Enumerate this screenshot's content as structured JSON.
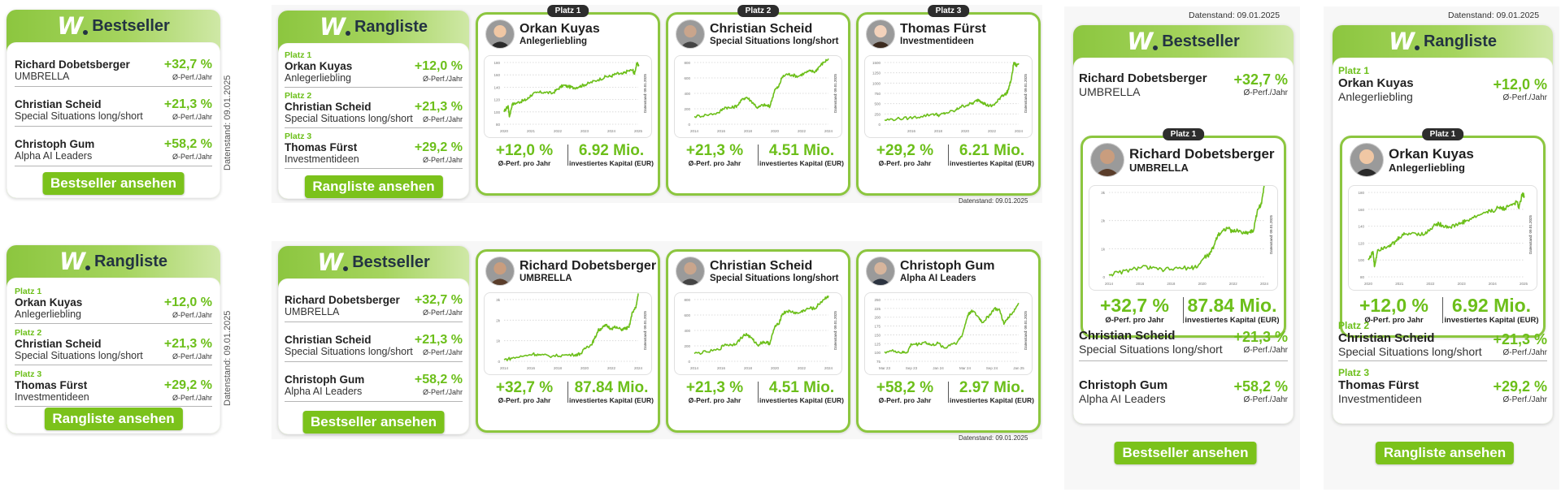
{
  "stamp": "Datenstand: 09.01.2025",
  "perf_sub": "Ø-Perf./Jahr",
  "kpi_perf_label": "Ø-Perf. pro Jahr",
  "kpi_capital_label": "investiertes Kapital (EUR)",
  "logo_mark": "W",
  "titles": {
    "bestseller": "Bestseller",
    "rangliste": "Rangliste"
  },
  "buttons": {
    "bestseller": "Bestseller ansehen",
    "rangliste": "Rangliste ansehen"
  },
  "rank_labels": [
    "Platz 1",
    "Platz 2",
    "Platz 3"
  ],
  "traders": {
    "dobetsberger": {
      "name": "Richard Dobetsberger",
      "fund": "UMBRELLA",
      "perf": "+32,7 %",
      "capital": "87.84 Mio."
    },
    "scheid": {
      "name": "Christian Scheid",
      "fund": "Special Situations long/short",
      "perf": "+21,3 %",
      "capital": "4.51 Mio."
    },
    "gum": {
      "name": "Christoph Gum",
      "fund": "Alpha AI Leaders",
      "perf": "+58,2 %",
      "capital": "2.97 Mio."
    },
    "kuyas": {
      "name": "Orkan Kuyas",
      "fund": "Anlegerliebling",
      "perf": "+12,0 %",
      "capital": "6.92 Mio."
    },
    "fuerst": {
      "name": "Thomas Fürst",
      "fund": "Investmentideen",
      "perf": "+29,2 %",
      "capital": "6.21 Mio."
    }
  },
  "colors": {
    "accent": "#6cbf1a",
    "header_green": "#8cc63f",
    "button_green": "#7bc21b",
    "title_dark": "#233342",
    "badge_dark": "#2d2d2d"
  },
  "chart_data": [
    {
      "id": "kuyas",
      "type": "line",
      "title": "Orkan Kuyas – Anlegerliebling",
      "x_ticks": [
        "2020",
        "2021",
        "2022",
        "2023",
        "2024",
        "2025"
      ],
      "y_ticks": [
        "80",
        "100",
        "120",
        "140",
        "160",
        "180"
      ],
      "ylim": [
        80,
        180
      ],
      "xlim": [
        2020,
        2025
      ],
      "side_label": "Datenstand: 09.01.2025",
      "points": [
        [
          2020.0,
          100
        ],
        [
          2020.15,
          110
        ],
        [
          2020.2,
          92
        ],
        [
          2020.3,
          112
        ],
        [
          2020.5,
          115
        ],
        [
          2020.7,
          118
        ],
        [
          2020.85,
          120
        ],
        [
          2021.0,
          127
        ],
        [
          2021.2,
          131
        ],
        [
          2021.5,
          132
        ],
        [
          2021.8,
          130
        ],
        [
          2022.0,
          137
        ],
        [
          2022.2,
          143
        ],
        [
          2022.4,
          141
        ],
        [
          2022.6,
          139
        ],
        [
          2022.8,
          141
        ],
        [
          2023.0,
          144
        ],
        [
          2023.2,
          147
        ],
        [
          2023.5,
          152
        ],
        [
          2023.8,
          157
        ],
        [
          2024.0,
          158
        ],
        [
          2024.2,
          162
        ],
        [
          2024.4,
          161
        ],
        [
          2024.6,
          166
        ],
        [
          2024.8,
          168
        ],
        [
          2024.85,
          161
        ],
        [
          2024.95,
          178
        ],
        [
          2025.02,
          176
        ]
      ]
    },
    {
      "id": "scheid",
      "type": "line",
      "title": "Christian Scheid – Special Situations long/short",
      "x_ticks": [
        "2014",
        "2016",
        "2018",
        "2020",
        "2022",
        "2024"
      ],
      "y_ticks": [
        "0",
        "200",
        "400",
        "600",
        "800"
      ],
      "ylim": [
        0,
        800
      ],
      "xlim": [
        2014,
        2025
      ],
      "side_label": "Datenstand: 09.01.2025",
      "points": [
        [
          2014.0,
          100
        ],
        [
          2015.0,
          120
        ],
        [
          2016.0,
          150
        ],
        [
          2016.5,
          220
        ],
        [
          2017.0,
          210
        ],
        [
          2017.5,
          240
        ],
        [
          2018.0,
          330
        ],
        [
          2018.3,
          350
        ],
        [
          2018.8,
          280
        ],
        [
          2019.2,
          210
        ],
        [
          2019.6,
          250
        ],
        [
          2020.0,
          240
        ],
        [
          2020.2,
          230
        ],
        [
          2020.6,
          450
        ],
        [
          2020.9,
          480
        ],
        [
          2021.2,
          610
        ],
        [
          2021.6,
          650
        ],
        [
          2022.0,
          640
        ],
        [
          2022.5,
          620
        ],
        [
          2023.0,
          660
        ],
        [
          2023.5,
          690
        ],
        [
          2023.9,
          680
        ],
        [
          2024.2,
          740
        ],
        [
          2024.6,
          800
        ],
        [
          2025.0,
          850
        ]
      ]
    },
    {
      "id": "fuerst",
      "type": "line",
      "title": "Thomas Fürst – Investmentideen",
      "x_ticks": [
        "2016",
        "2018",
        "2020",
        "2022",
        "2024"
      ],
      "y_ticks": [
        "0",
        "250",
        "500",
        "750",
        "1000",
        "1250",
        "1500"
      ],
      "ylim": [
        0,
        1500
      ],
      "xlim": [
        2014,
        2025
      ],
      "side_label": "Datenstand: 09.01.2025",
      "points": [
        [
          2014.0,
          100
        ],
        [
          2015.0,
          130
        ],
        [
          2016.0,
          150
        ],
        [
          2017.0,
          190
        ],
        [
          2018.0,
          250
        ],
        [
          2018.5,
          220
        ],
        [
          2019.0,
          270
        ],
        [
          2019.8,
          330
        ],
        [
          2020.2,
          420
        ],
        [
          2020.8,
          470
        ],
        [
          2021.3,
          520
        ],
        [
          2021.7,
          600
        ],
        [
          2022.0,
          540
        ],
        [
          2022.4,
          460
        ],
        [
          2022.8,
          440
        ],
        [
          2023.2,
          530
        ],
        [
          2023.6,
          700
        ],
        [
          2023.9,
          720
        ],
        [
          2024.1,
          800
        ],
        [
          2024.4,
          1100
        ],
        [
          2024.6,
          1500
        ],
        [
          2024.8,
          1420
        ],
        [
          2025.0,
          1480
        ]
      ]
    },
    {
      "id": "dobetsberger",
      "type": "line",
      "title": "Richard Dobetsberger – UMBRELLA",
      "x_ticks": [
        "2014",
        "2016",
        "2018",
        "2020",
        "2022",
        "2024"
      ],
      "y_ticks": [
        "0",
        "1k",
        "2k",
        "3k"
      ],
      "ylim": [
        0,
        3000
      ],
      "xlim": [
        2013.3,
        2025
      ],
      "side_label": "Datenstand: 09.01.2025",
      "points": [
        [
          2013.3,
          80
        ],
        [
          2014.0,
          150
        ],
        [
          2015.0,
          250
        ],
        [
          2015.8,
          360
        ],
        [
          2016.5,
          300
        ],
        [
          2017.5,
          250
        ],
        [
          2018.5,
          300
        ],
        [
          2019.5,
          320
        ],
        [
          2020.0,
          380
        ],
        [
          2020.5,
          700
        ],
        [
          2020.9,
          800
        ],
        [
          2021.2,
          1100
        ],
        [
          2021.5,
          1500
        ],
        [
          2021.8,
          1600
        ],
        [
          2022.2,
          1750
        ],
        [
          2022.6,
          1600
        ],
        [
          2023.0,
          1650
        ],
        [
          2023.5,
          1550
        ],
        [
          2023.9,
          1600
        ],
        [
          2024.2,
          1650
        ],
        [
          2024.5,
          2400
        ],
        [
          2024.8,
          2600
        ],
        [
          2025.0,
          3300
        ]
      ]
    },
    {
      "id": "gum",
      "type": "line",
      "title": "Christoph Gum – Alpha AI Leaders",
      "x_ticks": [
        "Mar 23",
        "Sep 23",
        "Jan 24",
        "Mar 24",
        "Sep 24",
        "Jan 25"
      ],
      "y_ticks": [
        "75",
        "100",
        "125",
        "150",
        "175",
        "200",
        "225",
        "250"
      ],
      "ylim": [
        75,
        250
      ],
      "xlim": [
        0,
        1
      ],
      "side_label": "Datenstand: 09.01.2025",
      "points": [
        [
          0.0,
          102
        ],
        [
          0.08,
          104
        ],
        [
          0.13,
          99
        ],
        [
          0.17,
          101
        ],
        [
          0.2,
          124
        ],
        [
          0.25,
          123
        ],
        [
          0.3,
          130
        ],
        [
          0.35,
          120
        ],
        [
          0.4,
          126
        ],
        [
          0.45,
          112
        ],
        [
          0.5,
          125
        ],
        [
          0.54,
          128
        ],
        [
          0.58,
          150
        ],
        [
          0.62,
          205
        ],
        [
          0.65,
          220
        ],
        [
          0.7,
          200
        ],
        [
          0.73,
          185
        ],
        [
          0.78,
          205
        ],
        [
          0.82,
          225
        ],
        [
          0.86,
          218
        ],
        [
          0.89,
          180
        ],
        [
          0.92,
          200
        ],
        [
          0.96,
          215
        ],
        [
          1.0,
          240
        ]
      ]
    }
  ]
}
